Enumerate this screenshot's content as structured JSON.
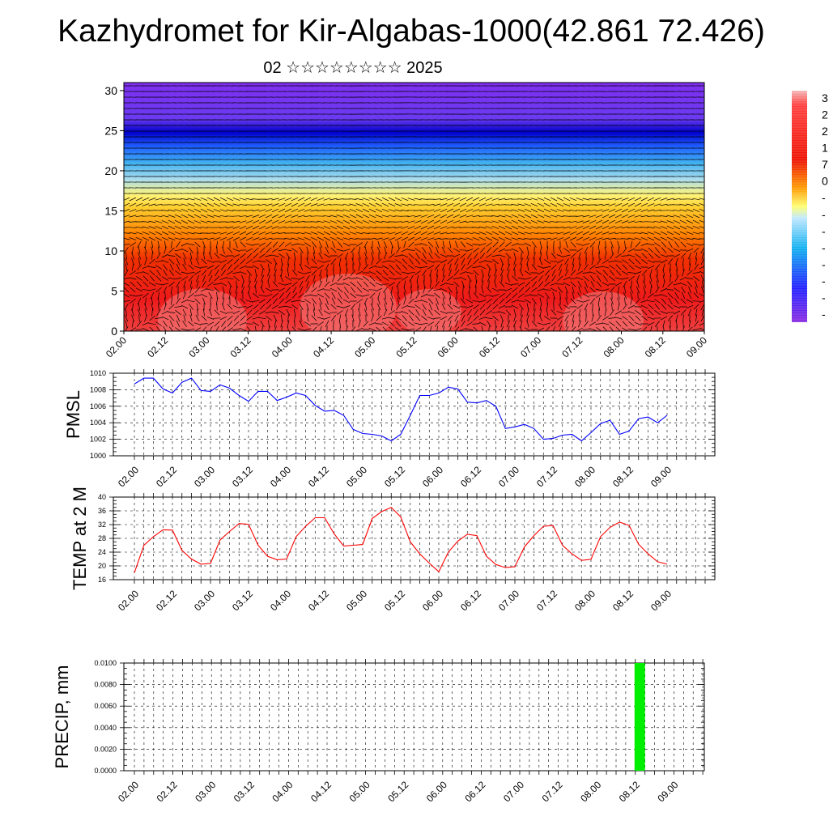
{
  "title": "Kazhydromet for Kir-Algabas-1000(42.861 72.426)",
  "subtitle": "02 ☆☆☆☆☆☆☆☆ 2025",
  "colors": {
    "pmsl_line": "#0000ff",
    "temp_line": "#ff0000",
    "precip_bar": "#00ee00",
    "vector": "#000000"
  },
  "chart_data": [
    {
      "type": "heatmap",
      "title": "",
      "x_ticks": [
        "02.00",
        "02.12",
        "03.00",
        "03.12",
        "04.00",
        "04.12",
        "05.00",
        "05.12",
        "06.00",
        "06.12",
        "07.00",
        "07.12",
        "08.00",
        "08.12",
        "09.00"
      ],
      "y_ticks": [
        "0",
        "5",
        "10",
        "15",
        "20",
        "25",
        "30"
      ],
      "ylim": [
        0,
        31
      ],
      "colorbar_labels": [
        "3",
        "2",
        "2",
        "1",
        "7",
        "0",
        "-",
        "-",
        "-",
        "-",
        "-",
        "-",
        "-",
        "-"
      ],
      "colorbar_stops": [
        {
          "pos": 0.0,
          "color": "#f4b6b6"
        },
        {
          "pos": 0.06,
          "color": "#ff4040"
        },
        {
          "pos": 0.3,
          "color": "#ee1100"
        },
        {
          "pos": 0.42,
          "color": "#ff9a00"
        },
        {
          "pos": 0.5,
          "color": "#ffff70"
        },
        {
          "pos": 0.55,
          "color": "#c0e8ff"
        },
        {
          "pos": 0.68,
          "color": "#10b0f0"
        },
        {
          "pos": 0.85,
          "color": "#2020ff"
        },
        {
          "pos": 1.0,
          "color": "#8a2be2"
        }
      ],
      "field_bands": [
        {
          "level": 0,
          "color": "#f04040"
        },
        {
          "level": 4,
          "color": "#ee1a1a"
        },
        {
          "level": 9,
          "color": "#f03000"
        },
        {
          "level": 12,
          "color": "#ff8000"
        },
        {
          "level": 15.5,
          "color": "#ffd030"
        },
        {
          "level": 17,
          "color": "#fff47a"
        },
        {
          "level": 19,
          "color": "#a8dcf0"
        },
        {
          "level": 21,
          "color": "#40b0f0"
        },
        {
          "level": 23,
          "color": "#2060ff"
        },
        {
          "level": 24.8,
          "color": "#0000cc"
        },
        {
          "level": 26.5,
          "color": "#6a3af0"
        },
        {
          "level": 31,
          "color": "#8030f0"
        }
      ]
    },
    {
      "type": "line",
      "ylabel": "PMSL",
      "ylim": [
        1000,
        1010
      ],
      "y_ticks": [
        "1000",
        "1002",
        "1004",
        "1006",
        "1008",
        "1010"
      ],
      "x_ticks": [
        "02.00",
        "02.12",
        "03.00",
        "03.12",
        "04.00",
        "04.12",
        "05.00",
        "05.12",
        "06.00",
        "06.12",
        "07.00",
        "07.12",
        "08.00",
        "08.12",
        "09.00"
      ],
      "series": [
        {
          "values": [
            1008.7,
            1009.4,
            1009.4,
            1008.1,
            1007.6,
            1008.9,
            1009.4,
            1007.9,
            1007.8,
            1008.6,
            1008.2,
            1007.3,
            1006.6,
            1007.8,
            1007.8,
            1006.7,
            1007.1,
            1007.6,
            1007.3,
            1006.1,
            1005.4,
            1005.5,
            1004.9,
            1003.2,
            1002.7,
            1002.6,
            1002.4,
            1001.8,
            1002.6,
            1004.9,
            1007.3,
            1007.3,
            1007.6,
            1008.3,
            1008.1,
            1006.5,
            1006.4,
            1006.7,
            1006.0,
            1003.3,
            1003.5,
            1003.8,
            1003.3,
            1002.0,
            1002.1,
            1002.5,
            1002.6,
            1001.8,
            1002.8,
            1003.9,
            1004.3,
            1002.6,
            1003.0,
            1004.5,
            1004.7,
            1004.0,
            1004.9
          ]
        }
      ]
    },
    {
      "type": "line",
      "ylabel": "TEMP at 2 M",
      "ylim": [
        16,
        40
      ],
      "y_ticks": [
        "16",
        "20",
        "24",
        "28",
        "32",
        "36",
        "40"
      ],
      "x_ticks": [
        "02.00",
        "02.12",
        "03.00",
        "03.12",
        "04.00",
        "04.12",
        "05.00",
        "05.12",
        "06.00",
        "06.12",
        "07.00",
        "07.12",
        "08.00",
        "08.12",
        "09.00"
      ],
      "series": [
        {
          "values": [
            18.0,
            26.0,
            28.5,
            30.5,
            30.4,
            24.5,
            22.0,
            20.5,
            20.7,
            27.5,
            30.0,
            32.3,
            32.1,
            26.0,
            22.8,
            21.8,
            22.0,
            28.5,
            31.5,
            34.0,
            34.0,
            29.3,
            25.8,
            26.0,
            26.2,
            33.8,
            35.8,
            37.0,
            34.2,
            27.0,
            23.5,
            20.8,
            18.3,
            24.0,
            27.2,
            29.2,
            28.8,
            22.8,
            20.4,
            19.5,
            19.8,
            25.5,
            28.8,
            31.5,
            31.8,
            26.0,
            23.5,
            21.6,
            21.9,
            28.5,
            31.2,
            32.7,
            31.8,
            26.3,
            23.5,
            21.2,
            20.5
          ]
        }
      ]
    },
    {
      "type": "bar",
      "ylabel": "PRECIP, mm",
      "ylim": [
        0,
        0.01
      ],
      "y_ticks": [
        "0.0000",
        "0.0020",
        "0.0040",
        "0.0060",
        "0.0080",
        "0.0100"
      ],
      "x_ticks": [
        "02.00",
        "02.12",
        "03.00",
        "03.12",
        "04.00",
        "04.12",
        "05.00",
        "05.12",
        "06.00",
        "06.12",
        "07.00",
        "07.12",
        "08.00",
        "08.12",
        "09.00"
      ],
      "bars": [
        {
          "x_step": 52,
          "value": 0.01
        }
      ]
    }
  ]
}
